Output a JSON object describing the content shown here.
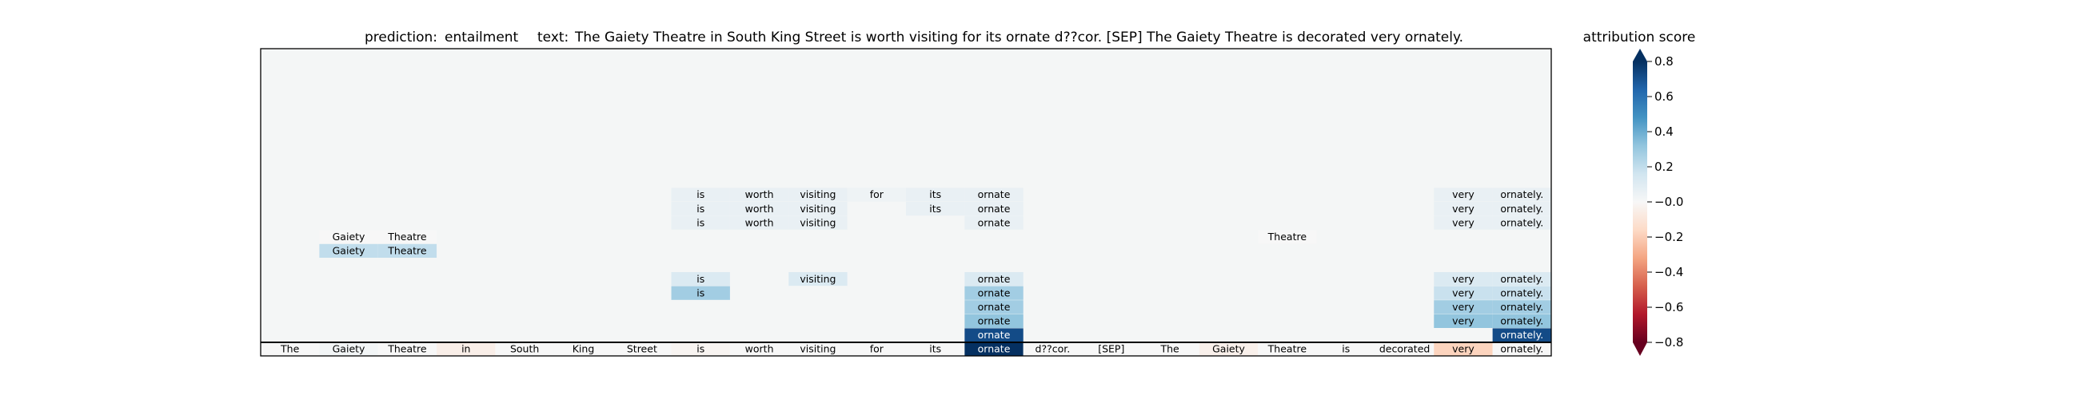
{
  "chart_data": {
    "type": "heatmap",
    "title_prediction_label": "prediction:",
    "title_prediction": "entailment",
    "title_text_label": "text:",
    "title_text": "The Gaiety Theatre in South King Street is worth visiting for its ornate d??cor. [SEP] The Gaiety Theatre is decorated very ornately.",
    "tokens": [
      "The",
      "Gaiety",
      "Theatre",
      "in",
      "South",
      "King",
      "Street",
      "is",
      "worth",
      "visiting",
      "for",
      "its",
      "ornate",
      "d??cor.",
      "[SEP]",
      "The",
      "Gaiety",
      "Theatre",
      "is",
      "decorated",
      "very",
      "ornately."
    ],
    "base_scores": [
      0.0,
      0.02,
      0.0,
      -0.05,
      0.0,
      0.0,
      0.0,
      -0.02,
      0.0,
      0.0,
      0.0,
      0.0,
      0.95,
      0.0,
      0.0,
      0.0,
      -0.04,
      0.0,
      0.0,
      0.0,
      -0.18,
      0.0
    ],
    "rows": [
      {
        "cells": [
          {
            "token": 12,
            "text": "ornate",
            "score": 0.72
          },
          {
            "token": 21,
            "text": "ornately.",
            "score": 0.72
          }
        ]
      },
      {
        "cells": [
          {
            "token": 12,
            "text": "ornate",
            "score": 0.32
          },
          {
            "token": 20,
            "text": "very",
            "score": 0.32
          },
          {
            "token": 21,
            "text": "ornately.",
            "score": 0.32
          }
        ]
      },
      {
        "cells": [
          {
            "token": 12,
            "text": "ornate",
            "score": 0.28
          },
          {
            "token": 20,
            "text": "very",
            "score": 0.28
          },
          {
            "token": 21,
            "text": "ornately.",
            "score": 0.28
          }
        ]
      },
      {
        "cells": [
          {
            "token": 7,
            "text": "is",
            "score": 0.28
          },
          {
            "token": 12,
            "text": "ornate",
            "score": 0.28
          },
          {
            "token": 20,
            "text": "very",
            "score": 0.18
          },
          {
            "token": 21,
            "text": "ornately.",
            "score": 0.18
          }
        ]
      },
      {
        "cells": [
          {
            "token": 7,
            "text": "is",
            "score": 0.12
          },
          {
            "token": 9,
            "text": "visiting",
            "score": 0.12
          },
          {
            "token": 12,
            "text": "ornate",
            "score": 0.12
          },
          {
            "token": 20,
            "text": "very",
            "score": 0.12
          },
          {
            "token": 21,
            "text": "ornately.",
            "score": 0.12
          }
        ]
      },
      {
        "cells": []
      },
      {
        "cells": [
          {
            "token": 1,
            "text": "Gaiety",
            "score": 0.2
          },
          {
            "token": 2,
            "text": "Theatre",
            "score": 0.2
          }
        ]
      },
      {
        "cells": [
          {
            "token": 1,
            "text": "Gaiety",
            "score": 0.0
          },
          {
            "token": 2,
            "text": "Theatre",
            "score": 0.0
          },
          {
            "token": 17,
            "text": "Theatre",
            "score": 0.0
          }
        ]
      },
      {
        "cells": [
          {
            "token": 7,
            "text": "is",
            "score": 0.06
          },
          {
            "token": 8,
            "text": "worth",
            "score": 0.06
          },
          {
            "token": 9,
            "text": "visiting",
            "score": 0.06
          },
          {
            "token": 12,
            "text": "ornate",
            "score": 0.06
          },
          {
            "token": 20,
            "text": "very",
            "score": 0.06
          },
          {
            "token": 21,
            "text": "ornately.",
            "score": 0.06
          }
        ]
      },
      {
        "cells": [
          {
            "token": 7,
            "text": "is",
            "score": 0.06
          },
          {
            "token": 8,
            "text": "worth",
            "score": 0.06
          },
          {
            "token": 9,
            "text": "visiting",
            "score": 0.06
          },
          {
            "token": 11,
            "text": "its",
            "score": 0.06
          },
          {
            "token": 12,
            "text": "ornate",
            "score": 0.06
          },
          {
            "token": 20,
            "text": "very",
            "score": 0.06
          },
          {
            "token": 21,
            "text": "ornately.",
            "score": 0.06
          }
        ]
      },
      {
        "cells": [
          {
            "token": 7,
            "text": "is",
            "score": 0.06
          },
          {
            "token": 8,
            "text": "worth",
            "score": 0.06
          },
          {
            "token": 9,
            "text": "visiting",
            "score": 0.06
          },
          {
            "token": 10,
            "text": "for",
            "score": 0.04
          },
          {
            "token": 11,
            "text": "its",
            "score": 0.06
          },
          {
            "token": 12,
            "text": "ornate",
            "score": 0.06
          },
          {
            "token": 20,
            "text": "very",
            "score": 0.06
          },
          {
            "token": 21,
            "text": "ornately.",
            "score": 0.06
          }
        ]
      }
    ],
    "colorbar": {
      "label": "attribution score",
      "vmin": -0.8,
      "vmax": 0.8,
      "ticks": [
        0.8,
        0.6,
        0.4,
        0.2,
        0.0,
        -0.2,
        -0.4,
        -0.6,
        -0.8
      ],
      "tick_labels": [
        "0.8",
        "0.6",
        "0.4",
        "0.2",
        "−0.0",
        "−0.2",
        "−0.4",
        "−0.6",
        "−0.8"
      ]
    },
    "colors": {
      "background": "#f4f6f6",
      "cmap": [
        "#67001f",
        "#b2182b",
        "#d6604d",
        "#f4a582",
        "#fddbc7",
        "#f7f7f7",
        "#d1e5f0",
        "#92c5de",
        "#4393c3",
        "#2166ac",
        "#053061"
      ]
    }
  }
}
